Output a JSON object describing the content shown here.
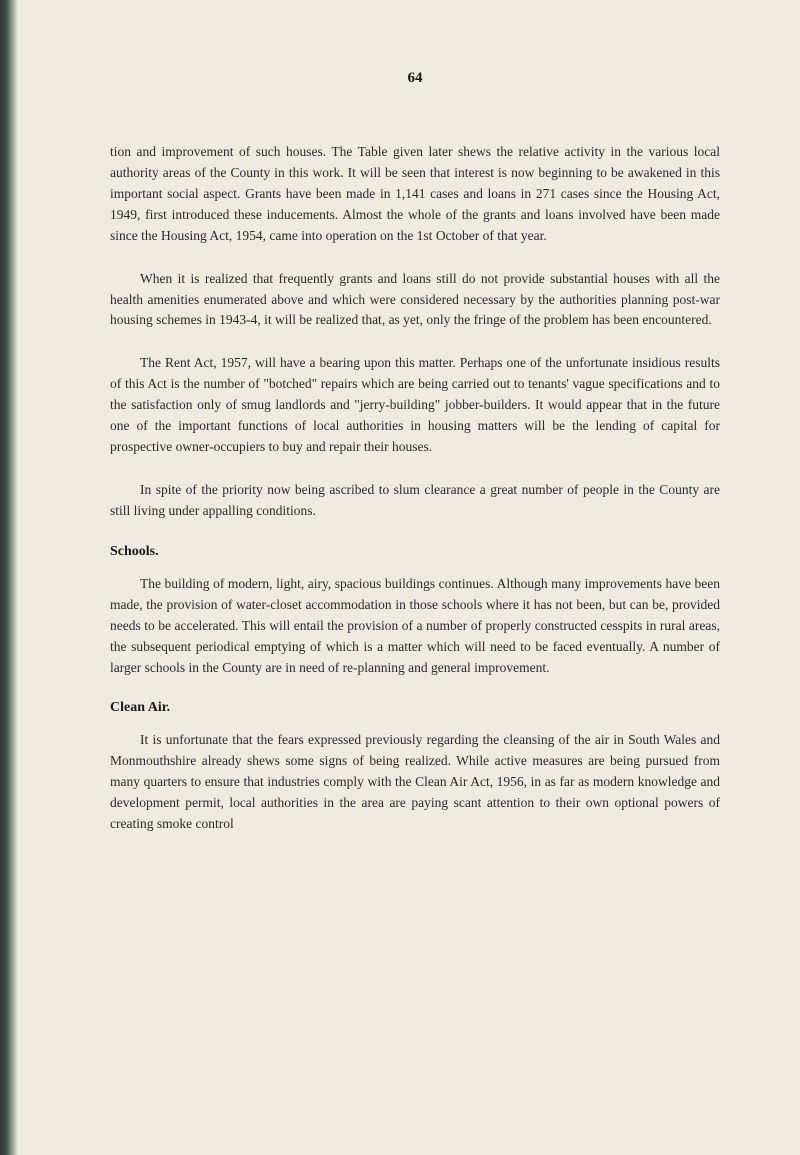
{
  "page_number": "64",
  "paragraphs": {
    "p1": "tion and improvement of such houses. The Table given later shews the relative activity in the various local authority areas of the County in this work. It will be seen that interest is now beginning to be awakened in this important social aspect. Grants have been made in 1,141 cases and loans in 271 cases since the Housing Act, 1949, first introduced these inducements. Almost the whole of the grants and loans involved have been made since the Housing Act, 1954, came into operation on the 1st October of that year.",
    "p2": "When it is realized that frequently grants and loans still do not provide substantial houses with all the health amenities enumerated above and which were considered necessary by the authorities planning post-war housing schemes in 1943-4, it will be realized that, as yet, only the fringe of the problem has been encountered.",
    "p3": "The Rent Act, 1957, will have a bearing upon this matter. Perhaps one of the unfortunate insidious results of this Act is the number of \"botched\" repairs which are being carried out to tenants' vague specifications and to the satisfaction only of smug landlords and \"jerry-building\" jobber-builders. It would appear that in the future one of the important functions of local authorities in housing matters will be the lending of capital for prospective owner-occupiers to buy and repair their houses.",
    "p4": "In spite of the priority now being ascribed to slum clearance a great number of people in the County are still living under appalling conditions.",
    "p5": "The building of modern, light, airy, spacious buildings continues. Although many improvements have been made, the provision of water-closet accommodation in those schools where it has not been, but can be, provided needs to be accelerated. This will entail the provision of a number of properly constructed cesspits in rural areas, the subsequent periodical emptying of which is a matter which will need to be faced eventually. A number of larger schools in the County are in need of re-planning and general improvement.",
    "p6": "It is unfortunate that the fears expressed previously regarding the cleansing of the air in South Wales and Monmouthshire already shews some signs of being realized. While active measures are being pursued from many quarters to ensure that industries comply with the Clean Air Act, 1956, in as far as modern knowledge and development permit, local authorities in the area are paying scant attention to their own optional powers of creating smoke control"
  },
  "headings": {
    "schools": "Schools.",
    "clean_air": "Clean Air."
  }
}
